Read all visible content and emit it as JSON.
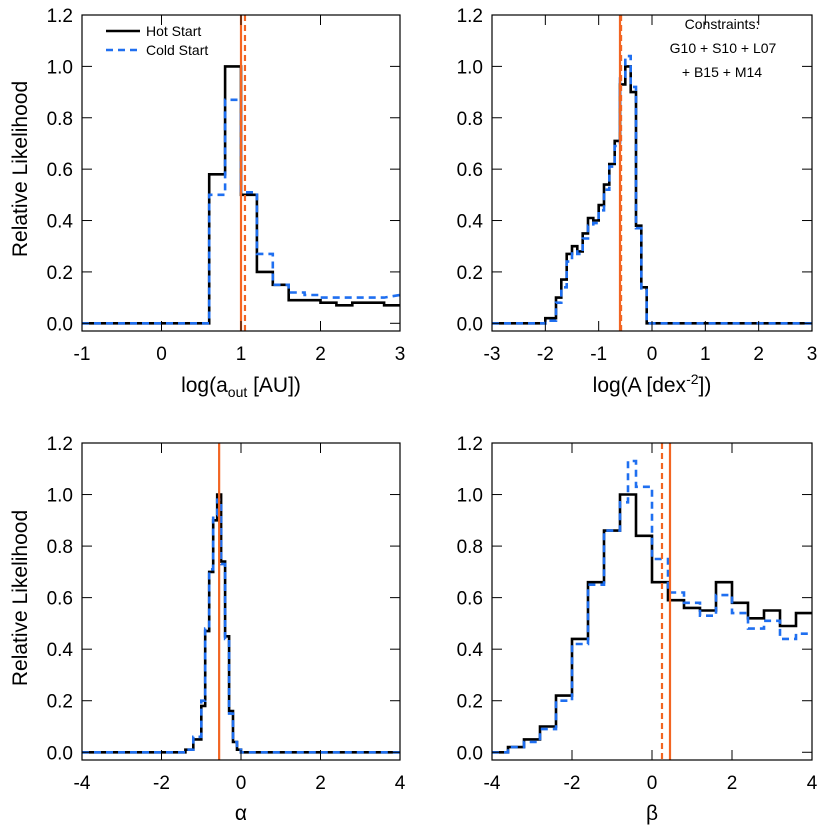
{
  "colors": {
    "hot": "#000000",
    "cold": "#1f6ff0",
    "marker": "#f26522"
  },
  "chart_data": [
    {
      "type": "histogram-step",
      "xlabel": "log(a_out [AU])",
      "ylabel": "Relative Likelihood",
      "xlim": [
        -1,
        3
      ],
      "ylim": [
        -0.03,
        1.2
      ],
      "xticks": [
        -1,
        0,
        1,
        2,
        3
      ],
      "xtick_labels": [
        "-1",
        "0",
        "1",
        "2",
        "3"
      ],
      "yticks": [
        0.0,
        0.2,
        0.4,
        0.6,
        0.8,
        1.0,
        1.2
      ],
      "ytick_labels": [
        "0.0",
        "0.2",
        "0.4",
        "0.6",
        "0.8",
        "1.0",
        "1.2"
      ],
      "legend": {
        "placement": "top-left",
        "entries": [
          "Hot Start",
          "Cold Start"
        ]
      },
      "note_lines": [],
      "series": [
        {
          "name": "Hot Start",
          "style": "solid",
          "x": [
            -1,
            0.6,
            0.6,
            0.8,
            0.8,
            1.0,
            1.0,
            1.2,
            1.2,
            1.4,
            1.4,
            1.6,
            1.6,
            1.8,
            1.8,
            2.0,
            2.0,
            2.2,
            2.2,
            2.4,
            2.4,
            2.6,
            2.6,
            2.8,
            2.8,
            3.0
          ],
          "y": [
            0.0,
            0.0,
            0.58,
            0.58,
            1.0,
            1.0,
            0.5,
            0.5,
            0.2,
            0.2,
            0.15,
            0.15,
            0.09,
            0.09,
            0.09,
            0.09,
            0.08,
            0.08,
            0.07,
            0.07,
            0.08,
            0.08,
            0.08,
            0.08,
            0.07,
            0.07
          ]
        },
        {
          "name": "Cold Start",
          "style": "dashed",
          "x": [
            -1,
            0.6,
            0.6,
            0.8,
            0.8,
            1.0,
            1.0,
            1.2,
            1.2,
            1.4,
            1.4,
            1.6,
            1.6,
            1.8,
            1.8,
            2.0,
            2.0,
            2.2,
            2.2,
            2.4,
            2.4,
            2.6,
            2.6,
            2.8,
            2.8,
            3.0
          ],
          "y": [
            0.0,
            0.0,
            0.5,
            0.5,
            0.87,
            0.87,
            0.51,
            0.51,
            0.27,
            0.27,
            0.15,
            0.15,
            0.12,
            0.12,
            0.11,
            0.11,
            0.1,
            0.1,
            0.1,
            0.1,
            0.1,
            0.1,
            0.1,
            0.1,
            0.1,
            0.11
          ]
        }
      ],
      "vlines": [
        {
          "x": 1.0,
          "style": "solid"
        },
        {
          "x": 1.05,
          "style": "dashed"
        }
      ]
    },
    {
      "type": "histogram-step",
      "xlabel": "log(A [dex^-2])",
      "ylabel": "",
      "xlim": [
        -3,
        3
      ],
      "ylim": [
        -0.03,
        1.2
      ],
      "xticks": [
        -3,
        -2,
        -1,
        0,
        1,
        2,
        3
      ],
      "xtick_labels": [
        "-3",
        "-2",
        "-1",
        "0",
        "1",
        "2",
        "3"
      ],
      "yticks": [
        0.0,
        0.2,
        0.4,
        0.6,
        0.8,
        1.0,
        1.2
      ],
      "ytick_labels": [
        "0.0",
        "0.2",
        "0.4",
        "0.6",
        "0.8",
        "1.0",
        "1.2"
      ],
      "legend": null,
      "note_lines": [
        "Constraints:",
        "G10 + S10 + L07",
        "+ B15 + M14"
      ],
      "series": [
        {
          "name": "Hot Start",
          "style": "solid",
          "x": [
            -3,
            -2.0,
            -2.0,
            -1.8,
            -1.8,
            -1.7,
            -1.7,
            -1.6,
            -1.6,
            -1.5,
            -1.5,
            -1.4,
            -1.4,
            -1.3,
            -1.3,
            -1.2,
            -1.2,
            -1.1,
            -1.1,
            -1.0,
            -1.0,
            -0.9,
            -0.9,
            -0.8,
            -0.8,
            -0.7,
            -0.7,
            -0.6,
            -0.6,
            -0.5,
            -0.5,
            -0.4,
            -0.4,
            -0.3,
            -0.3,
            -0.2,
            -0.2,
            -0.1,
            -0.1,
            3.0
          ],
          "y": [
            0.0,
            0.0,
            0.02,
            0.02,
            0.1,
            0.1,
            0.17,
            0.17,
            0.27,
            0.27,
            0.3,
            0.3,
            0.28,
            0.28,
            0.35,
            0.35,
            0.41,
            0.41,
            0.4,
            0.4,
            0.46,
            0.46,
            0.54,
            0.54,
            0.62,
            0.62,
            0.71,
            0.71,
            0.93,
            0.93,
            1.0,
            1.0,
            0.9,
            0.9,
            0.38,
            0.38,
            0.14,
            0.14,
            0.0,
            0.0
          ]
        },
        {
          "name": "Cold Start",
          "style": "dashed",
          "x": [
            -3,
            -2.0,
            -2.0,
            -1.8,
            -1.8,
            -1.7,
            -1.7,
            -1.6,
            -1.6,
            -1.5,
            -1.5,
            -1.4,
            -1.4,
            -1.3,
            -1.3,
            -1.2,
            -1.2,
            -1.1,
            -1.1,
            -1.0,
            -1.0,
            -0.9,
            -0.9,
            -0.8,
            -0.8,
            -0.7,
            -0.7,
            -0.6,
            -0.6,
            -0.5,
            -0.5,
            -0.4,
            -0.4,
            -0.3,
            -0.3,
            -0.2,
            -0.2,
            -0.1,
            -0.1,
            3.0
          ],
          "y": [
            0.0,
            0.0,
            0.01,
            0.01,
            0.08,
            0.08,
            0.14,
            0.14,
            0.24,
            0.24,
            0.28,
            0.28,
            0.27,
            0.27,
            0.33,
            0.33,
            0.38,
            0.38,
            0.39,
            0.39,
            0.44,
            0.44,
            0.52,
            0.52,
            0.61,
            0.61,
            0.69,
            0.69,
            0.96,
            0.96,
            1.04,
            1.04,
            0.92,
            0.92,
            0.37,
            0.37,
            0.13,
            0.13,
            0.0,
            0.0
          ]
        }
      ],
      "vlines": [
        {
          "x": -0.6,
          "style": "solid"
        },
        {
          "x": -0.58,
          "style": "dashed"
        }
      ]
    },
    {
      "type": "histogram-step",
      "xlabel": "α",
      "ylabel": "Relative Likelihood",
      "xlim": [
        -4,
        4
      ],
      "ylim": [
        -0.03,
        1.2
      ],
      "xticks": [
        -4,
        -2,
        0,
        2,
        4
      ],
      "xtick_labels": [
        "-4",
        "-2",
        "0",
        "2",
        "4"
      ],
      "yticks": [
        0.0,
        0.2,
        0.4,
        0.6,
        0.8,
        1.0,
        1.2
      ],
      "ytick_labels": [
        "0.0",
        "0.2",
        "0.4",
        "0.6",
        "0.8",
        "1.0",
        "1.2"
      ],
      "legend": null,
      "note_lines": [],
      "series": [
        {
          "name": "Hot Start",
          "style": "solid",
          "x": [
            -4,
            -1.4,
            -1.4,
            -1.2,
            -1.2,
            -1.0,
            -1.0,
            -0.9,
            -0.9,
            -0.8,
            -0.8,
            -0.7,
            -0.7,
            -0.6,
            -0.6,
            -0.5,
            -0.5,
            -0.4,
            -0.4,
            -0.3,
            -0.3,
            -0.2,
            -0.2,
            -0.1,
            -0.1,
            0.0,
            0.0,
            4.0
          ],
          "y": [
            0.0,
            0.0,
            0.01,
            0.01,
            0.05,
            0.05,
            0.18,
            0.18,
            0.47,
            0.47,
            0.7,
            0.7,
            0.9,
            0.9,
            1.0,
            1.0,
            0.74,
            0.74,
            0.45,
            0.45,
            0.16,
            0.16,
            0.04,
            0.04,
            0.01,
            0.01,
            0.0,
            0.0
          ]
        },
        {
          "name": "Cold Start",
          "style": "dashed",
          "x": [
            -4,
            -1.4,
            -1.4,
            -1.2,
            -1.2,
            -1.0,
            -1.0,
            -0.9,
            -0.9,
            -0.8,
            -0.8,
            -0.7,
            -0.7,
            -0.6,
            -0.6,
            -0.5,
            -0.5,
            -0.4,
            -0.4,
            -0.3,
            -0.3,
            -0.2,
            -0.2,
            -0.1,
            -0.1,
            0.0,
            0.0,
            4.0
          ],
          "y": [
            0.0,
            0.0,
            0.01,
            0.01,
            0.06,
            0.06,
            0.2,
            0.2,
            0.48,
            0.48,
            0.71,
            0.71,
            0.92,
            0.92,
            0.98,
            0.98,
            0.73,
            0.73,
            0.44,
            0.44,
            0.15,
            0.15,
            0.04,
            0.04,
            0.01,
            0.01,
            0.0,
            0.0
          ]
        }
      ],
      "vlines": [
        {
          "x": -0.55,
          "style": "solid"
        }
      ]
    },
    {
      "type": "histogram-step",
      "xlabel": "β",
      "ylabel": "",
      "xlim": [
        -4,
        4
      ],
      "ylim": [
        -0.03,
        1.2
      ],
      "xticks": [
        -4,
        -2,
        0,
        2,
        4
      ],
      "xtick_labels": [
        "-4",
        "-2",
        "0",
        "2",
        "4"
      ],
      "yticks": [
        0.0,
        0.2,
        0.4,
        0.6,
        0.8,
        1.0,
        1.2
      ],
      "ytick_labels": [
        "0.0",
        "0.2",
        "0.4",
        "0.6",
        "0.8",
        "1.0",
        "1.2"
      ],
      "legend": null,
      "note_lines": [],
      "series": [
        {
          "name": "Hot Start",
          "style": "solid",
          "x": [
            -4,
            -3.6,
            -3.6,
            -3.2,
            -3.2,
            -2.8,
            -2.8,
            -2.4,
            -2.4,
            -2.0,
            -2.0,
            -1.6,
            -1.6,
            -1.2,
            -1.2,
            -0.8,
            -0.8,
            -0.4,
            -0.4,
            0.0,
            0.0,
            0.4,
            0.4,
            0.8,
            0.8,
            1.2,
            1.2,
            1.6,
            1.6,
            2.0,
            2.0,
            2.4,
            2.4,
            2.8,
            2.8,
            3.2,
            3.2,
            3.6,
            3.6,
            4.0
          ],
          "y": [
            0.0,
            0.0,
            0.02,
            0.02,
            0.05,
            0.05,
            0.1,
            0.1,
            0.22,
            0.22,
            0.44,
            0.44,
            0.66,
            0.66,
            0.86,
            0.86,
            1.0,
            1.0,
            0.84,
            0.84,
            0.66,
            0.66,
            0.59,
            0.59,
            0.56,
            0.56,
            0.55,
            0.55,
            0.66,
            0.66,
            0.58,
            0.58,
            0.52,
            0.52,
            0.55,
            0.55,
            0.49,
            0.49,
            0.54,
            0.54
          ]
        },
        {
          "name": "Cold Start",
          "style": "dashed",
          "x": [
            -4,
            -3.6,
            -3.6,
            -3.2,
            -3.2,
            -2.8,
            -2.8,
            -2.4,
            -2.4,
            -2.0,
            -2.0,
            -1.6,
            -1.6,
            -1.2,
            -1.2,
            -0.8,
            -0.8,
            -0.6,
            -0.6,
            -0.4,
            -0.4,
            0.0,
            0.0,
            0.4,
            0.4,
            0.8,
            0.8,
            1.2,
            1.2,
            1.6,
            1.6,
            2.0,
            2.0,
            2.4,
            2.4,
            2.8,
            2.8,
            3.2,
            3.2,
            3.6,
            3.6,
            4.0
          ],
          "y": [
            0.0,
            0.0,
            0.02,
            0.02,
            0.04,
            0.04,
            0.09,
            0.09,
            0.2,
            0.2,
            0.42,
            0.42,
            0.65,
            0.65,
            0.86,
            0.86,
            0.97,
            0.97,
            1.13,
            1.13,
            1.03,
            1.03,
            0.75,
            0.75,
            0.62,
            0.62,
            0.58,
            0.58,
            0.53,
            0.53,
            0.61,
            0.61,
            0.54,
            0.54,
            0.48,
            0.48,
            0.51,
            0.51,
            0.44,
            0.44,
            0.46,
            0.46
          ]
        }
      ],
      "vlines": [
        {
          "x": 0.45,
          "style": "solid"
        },
        {
          "x": 0.25,
          "style": "dashed"
        }
      ]
    }
  ]
}
